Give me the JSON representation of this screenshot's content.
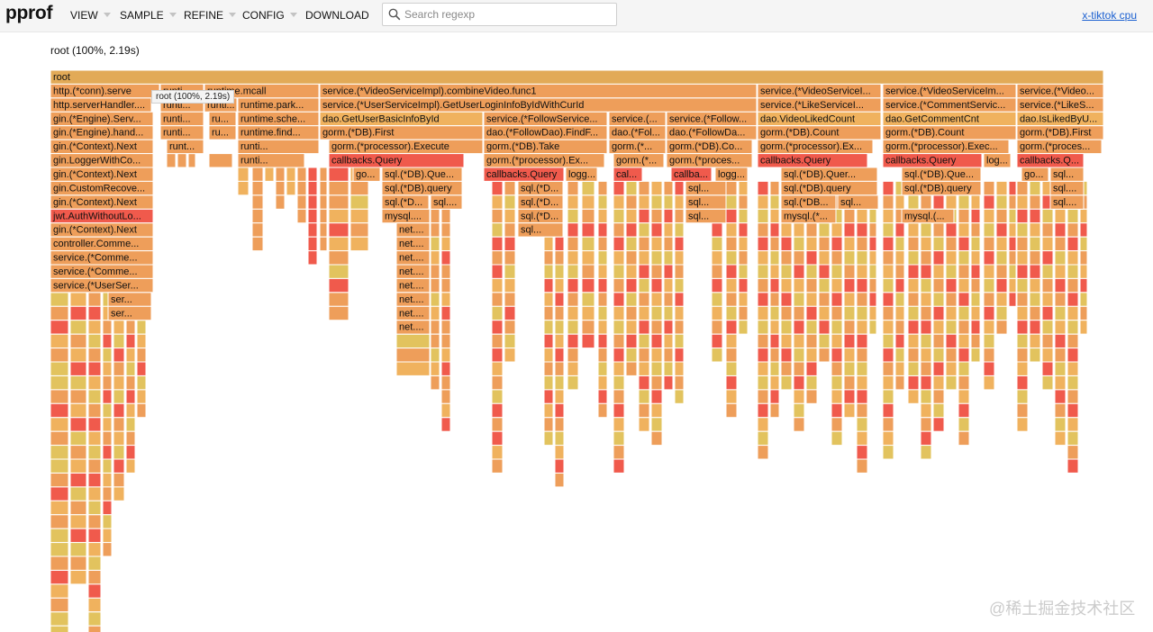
{
  "header": {
    "logo": "pprof",
    "menus": [
      "VIEW",
      "SAMPLE",
      "REFINE",
      "CONFIG",
      "DOWNLOAD"
    ],
    "search_placeholder": "Search regexp",
    "profile_link": "x-tiktok cpu"
  },
  "root_info": "root (100%, 2.19s)",
  "tooltip": "root (100%, 2.19s)",
  "watermark": "@稀土掘金技术社区",
  "colors": {
    "red": "#f05a4c",
    "orange": "#ee9e5a",
    "lightorange": "#f0b25e",
    "yellow": "#e2c35e",
    "root": "#e2aa57",
    "link": "#1a5fd0"
  },
  "flamegraph_labels": {
    "r1": "root",
    "r2a": "http.(*conn).serve",
    "r2b": "runti...",
    "r2c": "runtime.mcall",
    "r2d": "service.(*VideoServiceImpl).combineVideo.func1",
    "r2e": "service.(*VideoServiceI...",
    "r2f": "service.(*VideoServiceIm...",
    "r2g": "service.(*Video...",
    "r3a": "http.serverHandler....",
    "r3b": "runti...",
    "r3c": "runti...",
    "r3d": "runtime.park...",
    "r3e": "service.(*UserServiceImpl).GetUserLoginInfoByIdWithCurId",
    "r3f": "service.(*LikeServiceI...",
    "r3g": "service.(*CommentServic...",
    "r3h": "service.(*LikeS...",
    "r4a": "gin.(*Engine).Serv...",
    "r4b": "runti...",
    "r4c": "ru...",
    "r4d": "runtime.sche...",
    "r4e": "dao.GetUserBasicInfoById",
    "r4f": "service.(*FollowService...",
    "r4g": "service.(...",
    "r4h": "service.(*Follow...",
    "r4i": "dao.VideoLikedCount",
    "r4j": "dao.GetCommentCnt",
    "r4k": "dao.IsLikedByU...",
    "r5a": "gin.(*Engine).hand...",
    "r5b": "runti...",
    "r5c": "ru...",
    "r5d": "runtime.find...",
    "r5e": "gorm.(*DB).First",
    "r5f": "dao.(*FollowDao).FindF...",
    "r5g": "dao.(*Fol...",
    "r5h": "dao.(*FollowDa...",
    "r5i": "gorm.(*DB).Count",
    "r5j": "gorm.(*DB).Count",
    "r5k": "gorm.(*DB).First",
    "r6a": "gin.(*Context).Next",
    "r6b": "runt...",
    "r6c": "runti...",
    "r6d": "gorm.(*processor).Execute",
    "r6e": "gorm.(*DB).Take",
    "r6f": "gorm.(*...",
    "r6g": "gorm.(*DB).Co...",
    "r6h": "gorm.(*processor).Ex...",
    "r6i": "gorm.(*processor).Exec...",
    "r6j": "gorm.(*proces...",
    "r7a": "gin.LoggerWithCo...",
    "r7b": "runti...",
    "r7c": "callbacks.Query",
    "r7d": "gorm.(*processor).Ex...",
    "r7e": "gorm.(*...",
    "r7f": "gorm.(*proces...",
    "r7g": "callbacks.Query",
    "r7h": "callbacks.Query",
    "r7i": "log...",
    "r7j": "callbacks.Q...",
    "r8a": "gin.(*Context).Next",
    "r8b": "go...",
    "r8c": "sql.(*DB).Que...",
    "r8d": "callbacks.Query",
    "r8e": "logg...",
    "r8f": "cal...",
    "r8g": "callba...",
    "r8h": "logg...",
    "r8i": "sql.(*DB).Quer...",
    "r8j": "sql.(*DB).Que...",
    "r8k": "go...",
    "r8l": "sql...",
    "r9a": "gin.CustomRecove...",
    "r9b": "sql.(*DB).query",
    "r9c": "sql.(*D...",
    "r9d": "sql...",
    "r9e": "sql.(*DB).query",
    "r9f": "sql.(*DB).query",
    "r9g": "sql....",
    "r10a": "gin.(*Context).Next",
    "r10b": "sql.(*D...",
    "r10c": "sql....",
    "r10d": "sql.(*D...",
    "r10e": "sql...",
    "r10f": "sql.(*DB...",
    "r10g": "sql...",
    "r10h": "sql....",
    "r11a": "jwt.AuthWithoutLo...",
    "r11b": "mysql....",
    "r11c": "sql.(*D...",
    "r11d": "sql...",
    "r11e": "mysql.(*...",
    "r11f": "mysql.(...",
    "r12a": "gin.(*Context).Next",
    "r12b": "net....",
    "r12c": "sql...",
    "r13a": "controller.Comme...",
    "r13b": "net....",
    "r14a": "service.(*Comme...",
    "r14b": "net....",
    "r15a": "service.(*Comme...",
    "r15b": "net....",
    "r16a": "service.(*UserSer...",
    "r16b": "net....",
    "r17a": "ser...",
    "r17b": "net....",
    "r18a": "ser...",
    "r18b": "net....",
    "r19a": "net...."
  }
}
